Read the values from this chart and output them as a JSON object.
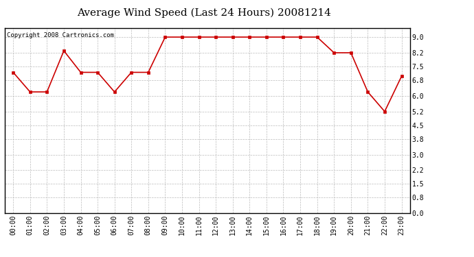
{
  "title": "Average Wind Speed (Last 24 Hours) 20081214",
  "copyright_text": "Copyright 2008 Cartronics.com",
  "x_labels": [
    "00:00",
    "01:00",
    "02:00",
    "03:00",
    "04:00",
    "05:00",
    "06:00",
    "07:00",
    "08:00",
    "09:00",
    "10:00",
    "11:00",
    "12:00",
    "13:00",
    "14:00",
    "15:00",
    "16:00",
    "17:00",
    "18:00",
    "19:00",
    "20:00",
    "21:00",
    "22:00",
    "23:00"
  ],
  "y_values": [
    7.2,
    6.2,
    6.2,
    8.3,
    7.2,
    7.2,
    6.2,
    7.2,
    7.2,
    9.0,
    9.0,
    9.0,
    9.0,
    9.0,
    9.0,
    9.0,
    9.0,
    9.0,
    9.0,
    8.2,
    8.2,
    6.2,
    5.2,
    7.0
  ],
  "y_ticks": [
    0.0,
    0.8,
    1.5,
    2.2,
    3.0,
    3.8,
    4.5,
    5.2,
    6.0,
    6.8,
    7.5,
    8.2,
    9.0
  ],
  "ylim": [
    0.0,
    9.45
  ],
  "line_color": "#cc0000",
  "marker_color": "#cc0000",
  "marker": "s",
  "marker_size": 2.5,
  "line_width": 1.2,
  "background_color": "#ffffff",
  "grid_color": "#bbbbbb",
  "title_fontsize": 11,
  "tick_fontsize": 7,
  "copyright_fontsize": 6.5
}
